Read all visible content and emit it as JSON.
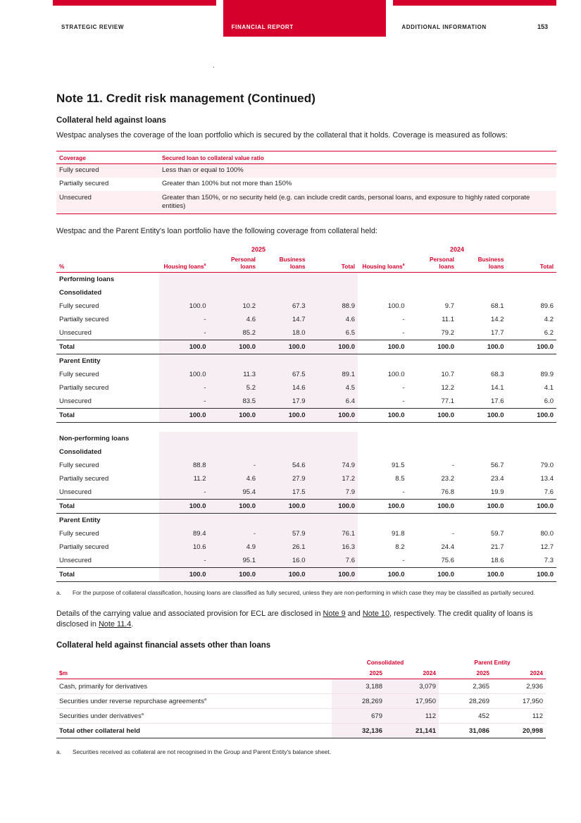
{
  "theme": {
    "red": "#d5002b",
    "band": "#f6eef3",
    "pink": "#fdeff2"
  },
  "header": {
    "tabs": [
      {
        "label": "STRATEGIC REVIEW",
        "active": false
      },
      {
        "label": "FINANCIAL REPORT",
        "active": true
      },
      {
        "label": "ADDITIONAL INFORMATION",
        "active": false
      }
    ],
    "page_number": "153"
  },
  "stray_mark": ".",
  "page_title": "Note 11. Credit risk management (Continued)",
  "collateral_loans": {
    "heading": "Collateral held against loans",
    "intro": "Westpac analyses the coverage of the loan portfolio which is secured by the collateral that it holds. Coverage is measured as follows:",
    "coverage_table": {
      "headers": [
        "Coverage",
        "Secured loan to collateral value ratio"
      ],
      "rows": [
        [
          "Fully secured",
          "Less than or equal to 100%"
        ],
        [
          "Partially secured",
          "Greater than 100% but not more than 150%"
        ],
        [
          "Unsecured",
          "Greater than 150%, or no security held (e.g. can include credit cards, personal loans, and exposure to highly rated corporate entities)"
        ]
      ]
    },
    "portfolio_intro": "Westpac and the Parent Entity's loan portfolio have the following coverage from collateral held:"
  },
  "loan_coverage_table": {
    "unit": "%",
    "year_groups": [
      "2025",
      "2024"
    ],
    "column_headers": [
      "Housing loans",
      "Personal\nloans",
      "Business\nloans",
      "Total",
      "Housing loans",
      "Personal\nloans",
      "Business\nloans",
      "Total"
    ],
    "sup_columns": [
      0,
      4
    ],
    "footnote_marker": "a",
    "rows": [
      {
        "type": "section",
        "label": "Performing loans"
      },
      {
        "type": "section",
        "label": "Consolidated"
      },
      {
        "type": "data",
        "label": "Fully secured",
        "values": [
          "100.0",
          "10.2",
          "67.3",
          "88.9",
          "100.0",
          "9.7",
          "68.1",
          "89.6"
        ]
      },
      {
        "type": "data",
        "label": "Partially secured",
        "values": [
          "-",
          "4.6",
          "14.7",
          "4.6",
          "-",
          "11.1",
          "14.2",
          "4.2"
        ]
      },
      {
        "type": "data",
        "label": "Unsecured",
        "values": [
          "-",
          "85.2",
          "18.0",
          "6.5",
          "-",
          "79.2",
          "17.7",
          "6.2"
        ]
      },
      {
        "type": "total",
        "label": "Total",
        "values": [
          "100.0",
          "100.0",
          "100.0",
          "100.0",
          "100.0",
          "100.0",
          "100.0",
          "100.0"
        ]
      },
      {
        "type": "section",
        "label": "Parent Entity"
      },
      {
        "type": "data",
        "label": "Fully secured",
        "values": [
          "100.0",
          "11.3",
          "67.5",
          "89.1",
          "100.0",
          "10.7",
          "68.3",
          "89.9"
        ]
      },
      {
        "type": "data",
        "label": "Partially secured",
        "values": [
          "-",
          "5.2",
          "14.6",
          "4.5",
          "-",
          "12.2",
          "14.1",
          "4.1"
        ]
      },
      {
        "type": "data",
        "label": "Unsecured",
        "values": [
          "-",
          "83.5",
          "17.9",
          "6.4",
          "-",
          "77.1",
          "17.6",
          "6.0"
        ]
      },
      {
        "type": "total",
        "label": "Total",
        "values": [
          "100.0",
          "100.0",
          "100.0",
          "100.0",
          "100.0",
          "100.0",
          "100.0",
          "100.0"
        ]
      },
      {
        "type": "gap"
      },
      {
        "type": "section",
        "label": "Non-performing loans"
      },
      {
        "type": "section",
        "label": "Consolidated"
      },
      {
        "type": "data",
        "label": "Fully secured",
        "values": [
          "88.8",
          "-",
          "54.6",
          "74.9",
          "91.5",
          "-",
          "56.7",
          "79.0"
        ]
      },
      {
        "type": "data",
        "label": "Partially secured",
        "values": [
          "11.2",
          "4.6",
          "27.9",
          "17.2",
          "8.5",
          "23.2",
          "23.4",
          "13.4"
        ]
      },
      {
        "type": "data",
        "label": "Unsecured",
        "values": [
          "-",
          "95.4",
          "17.5",
          "7.9",
          "-",
          "76.8",
          "19.9",
          "7.6"
        ]
      },
      {
        "type": "total",
        "label": "Total",
        "values": [
          "100.0",
          "100.0",
          "100.0",
          "100.0",
          "100.0",
          "100.0",
          "100.0",
          "100.0"
        ]
      },
      {
        "type": "section",
        "label": "Parent Entity"
      },
      {
        "type": "data",
        "label": "Fully secured",
        "values": [
          "89.4",
          "-",
          "57.9",
          "76.1",
          "91.8",
          "-",
          "59.7",
          "80.0"
        ]
      },
      {
        "type": "data",
        "label": "Partially secured",
        "values": [
          "10.6",
          "4.9",
          "26.1",
          "16.3",
          "8.2",
          "24.4",
          "21.7",
          "12.7"
        ]
      },
      {
        "type": "data",
        "label": "Unsecured",
        "values": [
          "-",
          "95.1",
          "16.0",
          "7.6",
          "-",
          "75.6",
          "18.6",
          "7.3"
        ]
      },
      {
        "type": "total",
        "label": "Total",
        "values": [
          "100.0",
          "100.0",
          "100.0",
          "100.0",
          "100.0",
          "100.0",
          "100.0",
          "100.0"
        ]
      }
    ]
  },
  "footnote_a": {
    "marker": "a.",
    "text": "For the purpose of collateral classification, housing loans are classified as fully secured, unless they are non-performing in which case they may be classified as partially secured."
  },
  "ecl_paragraph": {
    "segments": [
      {
        "text": "Details of the carrying value and associated provision for ECL are disclosed in ",
        "link": false
      },
      {
        "text": "Note 9",
        "link": true
      },
      {
        "text": " and ",
        "link": false
      },
      {
        "text": "Note 10",
        "link": true
      },
      {
        "text": ", respectively. The credit quality of loans is disclosed in ",
        "link": false
      },
      {
        "text": "Note 11.4",
        "link": true
      },
      {
        "text": ".",
        "link": false
      }
    ]
  },
  "other_collateral": {
    "heading": "Collateral held against financial assets other than loans",
    "table": {
      "unit": "$m",
      "groups": [
        "Consolidated",
        "Parent Entity"
      ],
      "years": [
        "2025",
        "2024",
        "2025",
        "2024"
      ],
      "rows": [
        {
          "type": "data",
          "label": "Cash, primarily for derivatives",
          "sup": "",
          "values": [
            "3,188",
            "3,079",
            "2,365",
            "2,936"
          ]
        },
        {
          "type": "data",
          "label": "Securities under reverse repurchase agreements",
          "sup": "a",
          "values": [
            "28,269",
            "17,950",
            "28,269",
            "17,950"
          ]
        },
        {
          "type": "data",
          "label": "Securities under derivatives",
          "sup": "a",
          "values": [
            "679",
            "112",
            "452",
            "112"
          ]
        },
        {
          "type": "total",
          "label": "Total other collateral held",
          "sup": "",
          "values": [
            "32,136",
            "21,141",
            "31,086",
            "20,998"
          ]
        }
      ]
    },
    "footnote": {
      "marker": "a.",
      "text": "Securities received as collateral are not recognised in the Group and Parent Entity's balance sheet."
    }
  }
}
